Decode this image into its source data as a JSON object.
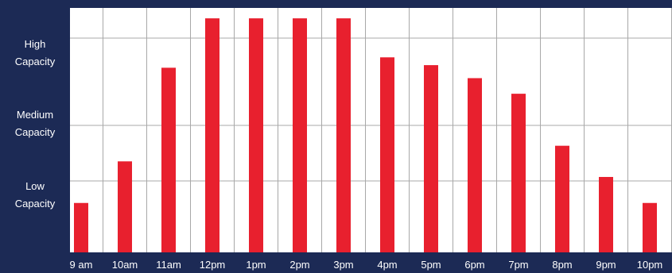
{
  "chart_data": {
    "type": "bar",
    "title": "",
    "xlabel": "",
    "ylabel": "",
    "categories": [
      "9 am",
      "10am",
      "11am",
      "12pm",
      "1pm",
      "2pm",
      "3pm",
      "4pm",
      "5pm",
      "6pm",
      "7pm",
      "8pm",
      "9pm",
      "10pm"
    ],
    "values": [
      19,
      35,
      71,
      90,
      90,
      90,
      90,
      75,
      72,
      67,
      61,
      41,
      29,
      19
    ],
    "ylim": [
      0,
      94
    ],
    "y_levels": [
      {
        "line1": "High",
        "line2": "Capacity"
      },
      {
        "line1": "Medium",
        "line2": "Capacity"
      },
      {
        "line1": "Low",
        "line2": "Capacity"
      }
    ],
    "grid": true,
    "legend": "none"
  },
  "colors": {
    "background": "#1c2a55",
    "plot_bg": "#ffffff",
    "bar": "#e8202e",
    "grid": "#a8a8a8",
    "text": "#ffffff"
  }
}
